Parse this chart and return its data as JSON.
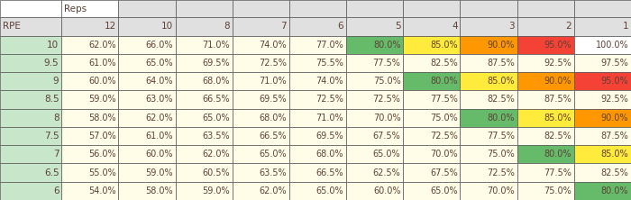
{
  "col_headers": [
    "",
    "12",
    "10",
    "8",
    "7",
    "6",
    "5",
    "4",
    "3",
    "2",
    "1"
  ],
  "row_headers": [
    "10",
    "9.5",
    "9",
    "8.5",
    "8",
    "7.5",
    "7",
    "6.5",
    "6"
  ],
  "header_row1": [
    "",
    "Reps",
    "",
    "",
    "",
    "",
    "",
    "",
    "",
    "",
    ""
  ],
  "header_row2": [
    "RPE",
    "12",
    "10",
    "8",
    "7",
    "6",
    "5",
    "4",
    "3",
    "2",
    "1"
  ],
  "table_data": [
    [
      "62.0%",
      "66.0%",
      "71.0%",
      "74.0%",
      "77.0%",
      "80.0%",
      "85.0%",
      "90.0%",
      "95.0%",
      "100.0%"
    ],
    [
      "61.0%",
      "65.0%",
      "69.5%",
      "72.5%",
      "75.5%",
      "77.5%",
      "82.5%",
      "87.5%",
      "92.5%",
      "97.5%"
    ],
    [
      "60.0%",
      "64.0%",
      "68.0%",
      "71.0%",
      "74.0%",
      "75.0%",
      "80.0%",
      "85.0%",
      "90.0%",
      "95.0%"
    ],
    [
      "59.0%",
      "63.0%",
      "66.5%",
      "69.5%",
      "72.5%",
      "72.5%",
      "77.5%",
      "82.5%",
      "87.5%",
      "92.5%"
    ],
    [
      "58.0%",
      "62.0%",
      "65.0%",
      "68.0%",
      "71.0%",
      "70.0%",
      "75.0%",
      "80.0%",
      "85.0%",
      "90.0%"
    ],
    [
      "57.0%",
      "61.0%",
      "63.5%",
      "66.5%",
      "69.5%",
      "67.5%",
      "72.5%",
      "77.5%",
      "82.5%",
      "87.5%"
    ],
    [
      "56.0%",
      "60.0%",
      "62.0%",
      "65.0%",
      "68.0%",
      "65.0%",
      "70.0%",
      "75.0%",
      "80.0%",
      "85.0%"
    ],
    [
      "55.0%",
      "59.0%",
      "60.5%",
      "63.5%",
      "66.5%",
      "62.5%",
      "67.5%",
      "72.5%",
      "77.5%",
      "82.5%"
    ],
    [
      "54.0%",
      "58.0%",
      "59.0%",
      "62.0%",
      "65.0%",
      "60.0%",
      "65.0%",
      "70.0%",
      "75.0%",
      "80.0%"
    ]
  ],
  "cell_colors": [
    [
      "#FFFDE7",
      "#FFFDE7",
      "#FFFDE7",
      "#FFFDE7",
      "#FFFDE7",
      "#66BB6A",
      "#FFEB3B",
      "#FF9800",
      "#F44336",
      "#FFFFFF"
    ],
    [
      "#FFFDE7",
      "#FFFDE7",
      "#FFFDE7",
      "#FFFDE7",
      "#FFFDE7",
      "#FFFDE7",
      "#FFFDE7",
      "#FFFDE7",
      "#FFFDE7",
      "#FFFDE7"
    ],
    [
      "#FFFDE7",
      "#FFFDE7",
      "#FFFDE7",
      "#FFFDE7",
      "#FFFDE7",
      "#FFFDE7",
      "#66BB6A",
      "#FFEB3B",
      "#FF9800",
      "#F44336"
    ],
    [
      "#FFFDE7",
      "#FFFDE7",
      "#FFFDE7",
      "#FFFDE7",
      "#FFFDE7",
      "#FFFDE7",
      "#FFFDE7",
      "#FFFDE7",
      "#FFFDE7",
      "#FFFDE7"
    ],
    [
      "#FFFDE7",
      "#FFFDE7",
      "#FFFDE7",
      "#FFFDE7",
      "#FFFDE7",
      "#FFFDE7",
      "#FFFDE7",
      "#66BB6A",
      "#FFEB3B",
      "#FF9800"
    ],
    [
      "#FFFDE7",
      "#FFFDE7",
      "#FFFDE7",
      "#FFFDE7",
      "#FFFDE7",
      "#FFFDE7",
      "#FFFDE7",
      "#FFFDE7",
      "#FFFDE7",
      "#FFFDE7"
    ],
    [
      "#FFFDE7",
      "#FFFDE7",
      "#FFFDE7",
      "#FFFDE7",
      "#FFFDE7",
      "#FFFDE7",
      "#FFFDE7",
      "#FFFDE7",
      "#66BB6A",
      "#FFEB3B"
    ],
    [
      "#FFFDE7",
      "#FFFDE7",
      "#FFFDE7",
      "#FFFDE7",
      "#FFFDE7",
      "#FFFDE7",
      "#FFFDE7",
      "#FFFDE7",
      "#FFFDE7",
      "#FFFDE7"
    ],
    [
      "#FFFDE7",
      "#FFFDE7",
      "#FFFDE7",
      "#FFFDE7",
      "#FFFDE7",
      "#FFFDE7",
      "#FFFDE7",
      "#FFFDE7",
      "#FFFDE7",
      "#66BB6A"
    ]
  ],
  "rpe_col_color": "#C8E6C9",
  "header1_bg": "#FFFFFF",
  "header2_bg": "#E0E0E0",
  "text_color": "#5D4037",
  "header_text_color": "#5D4037",
  "border_color": "#555555",
  "fig_width": 7.0,
  "fig_height": 2.22,
  "dpi": 100
}
